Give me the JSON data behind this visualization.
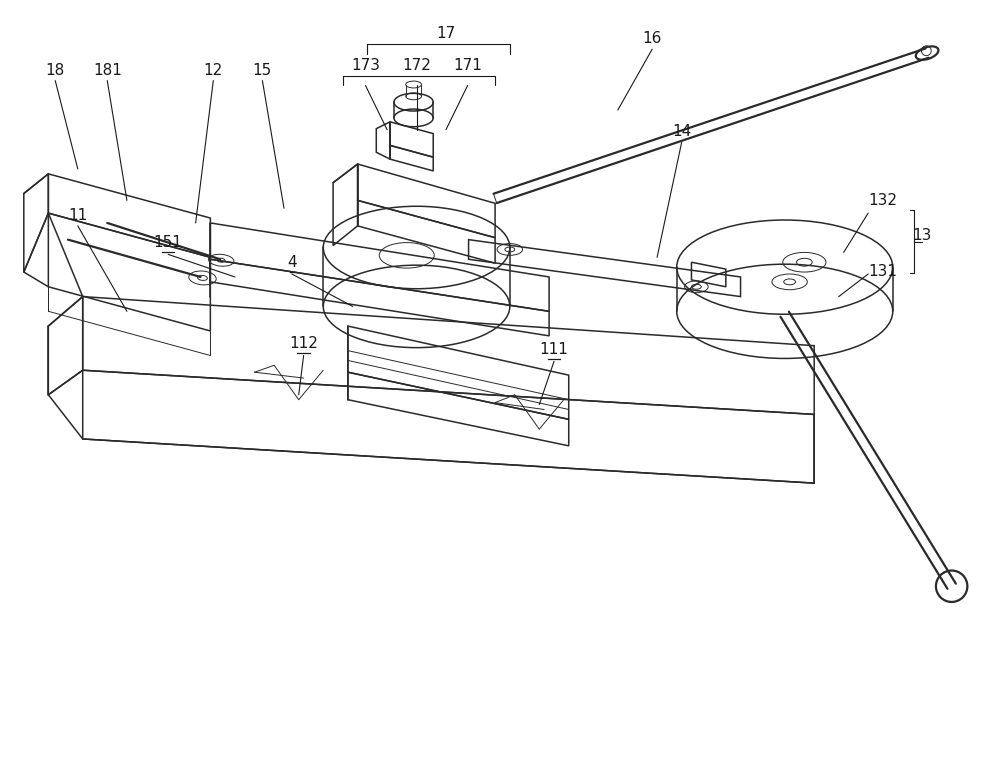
{
  "bg_color": "#ffffff",
  "line_color": "#2a2a2a",
  "label_color": "#1a1a1a",
  "figsize": [
    10.0,
    7.65
  ],
  "dpi": 100,
  "lw_main": 1.1,
  "lw_thin": 0.7,
  "lw_thick": 1.6,
  "font_size": 11
}
